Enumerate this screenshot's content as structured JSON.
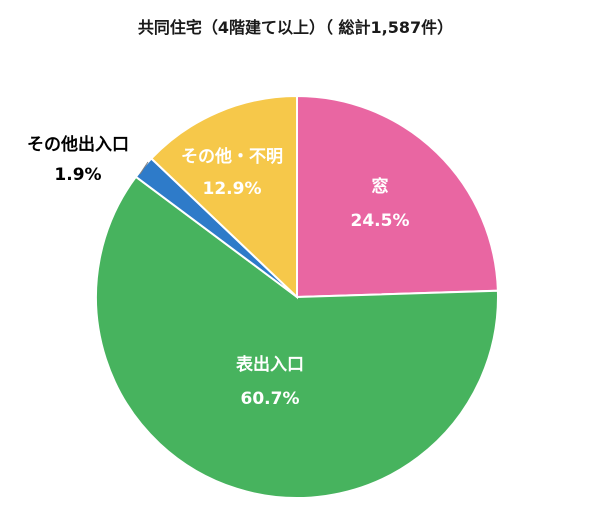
{
  "chart_data": {
    "type": "pie",
    "title": "共同住宅（4階建て以上）（ 総計1,587件）",
    "slices": [
      {
        "label": "窓",
        "value": 24.5,
        "value_label": "24.5%",
        "color": "#E966A2",
        "label_color": "#ffffff"
      },
      {
        "label": "表出入口",
        "value": 60.7,
        "value_label": "60.7%",
        "color": "#47B35E",
        "label_color": "#ffffff"
      },
      {
        "label": "その他出入口",
        "value": 1.9,
        "value_label": "1.9%",
        "color": "#2E7BC9",
        "label_color": "#000000"
      },
      {
        "label": "その他・不明",
        "value": 12.9,
        "value_label": "12.9%",
        "color": "#F6C84A",
        "label_color": "#ffffff"
      }
    ]
  }
}
